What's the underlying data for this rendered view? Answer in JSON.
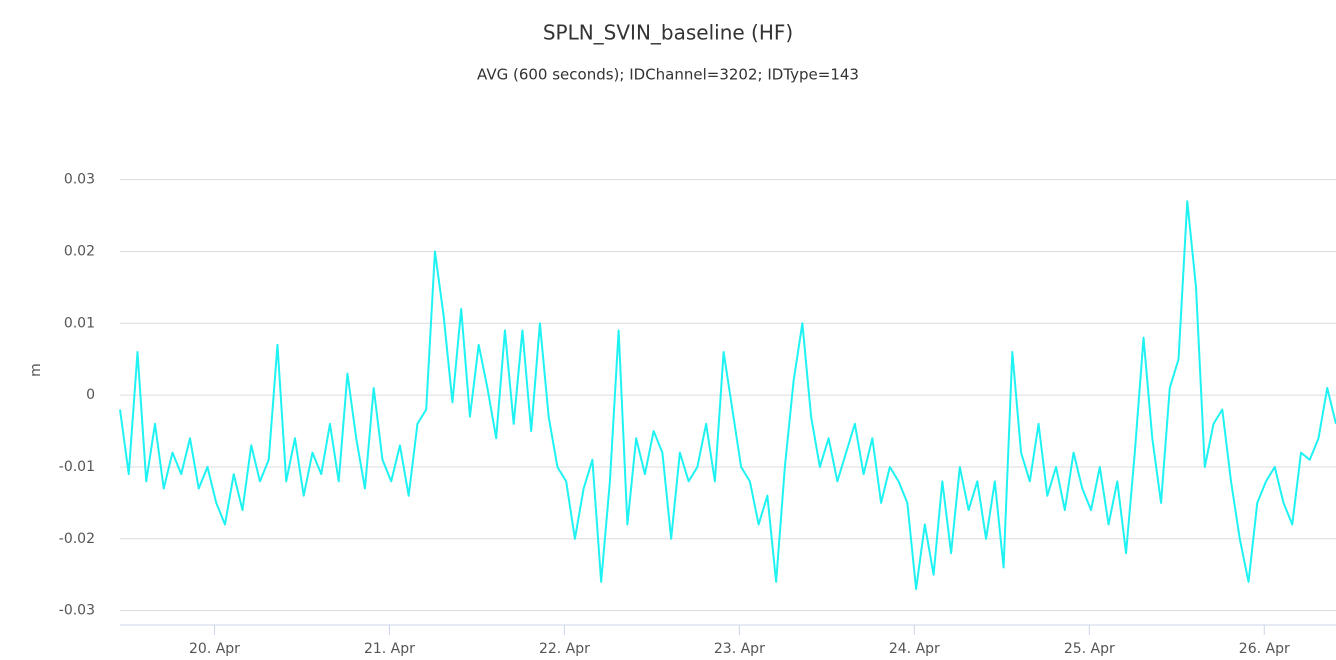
{
  "chart_data": {
    "type": "line",
    "title": "SPLN_SVIN_baseline (HF)",
    "subtitle": "AVG (600 seconds); IDChannel=3202; IDType=143",
    "y_label": "m",
    "color": "#1ff2f2",
    "grid": true,
    "xlim": [
      19.46,
      26.41
    ],
    "xticks": [
      {
        "value": 20,
        "label": "20. Apr"
      },
      {
        "value": 21,
        "label": "21. Apr"
      },
      {
        "value": 22,
        "label": "22. Apr"
      },
      {
        "value": 23,
        "label": "23. Apr"
      },
      {
        "value": 24,
        "label": "24. Apr"
      },
      {
        "value": 25,
        "label": "25. Apr"
      },
      {
        "value": 26,
        "label": "26. Apr"
      }
    ],
    "ylim": [
      -0.032,
      0.039
    ],
    "yticks": [
      -0.03,
      -0.02,
      -0.01,
      0,
      0.01,
      0.02,
      0.03
    ],
    "x": [
      19.46,
      19.51,
      19.56,
      19.61,
      19.66,
      19.71,
      19.76,
      19.81,
      19.86,
      19.91,
      19.96,
      20.01,
      20.06,
      20.11,
      20.16,
      20.21,
      20.26,
      20.31,
      20.36,
      20.41,
      20.46,
      20.51,
      20.56,
      20.61,
      20.66,
      20.71,
      20.76,
      20.81,
      20.86,
      20.91,
      20.96,
      21.01,
      21.06,
      21.11,
      21.16,
      21.21,
      21.26,
      21.31,
      21.36,
      21.41,
      21.46,
      21.51,
      21.56,
      21.61,
      21.66,
      21.71,
      21.76,
      21.81,
      21.86,
      21.91,
      21.96,
      22.01,
      22.06,
      22.11,
      22.16,
      22.21,
      22.26,
      22.31,
      22.36,
      22.41,
      22.46,
      22.51,
      22.56,
      22.61,
      22.66,
      22.71,
      22.76,
      22.81,
      22.86,
      22.91,
      22.96,
      23.01,
      23.06,
      23.11,
      23.16,
      23.21,
      23.26,
      23.31,
      23.36,
      23.41,
      23.46,
      23.51,
      23.56,
      23.61,
      23.66,
      23.71,
      23.76,
      23.81,
      23.86,
      23.91,
      23.96,
      24.01,
      24.06,
      24.11,
      24.16,
      24.21,
      24.26,
      24.31,
      24.36,
      24.41,
      24.46,
      24.51,
      24.56,
      24.61,
      24.66,
      24.71,
      24.76,
      24.81,
      24.86,
      24.91,
      24.96,
      25.01,
      25.06,
      25.11,
      25.16,
      25.21,
      25.26,
      25.31,
      25.36,
      25.41,
      25.46,
      25.51,
      25.56,
      25.61,
      25.66,
      25.71,
      25.76,
      25.81,
      25.86,
      25.91,
      25.96,
      26.01,
      26.06,
      26.11,
      26.16,
      26.21,
      26.26,
      26.31,
      26.36,
      26.41
    ],
    "values": [
      -0.002,
      -0.011,
      0.006,
      -0.012,
      -0.004,
      -0.013,
      -0.008,
      -0.011,
      -0.006,
      -0.013,
      -0.01,
      -0.015,
      -0.018,
      -0.011,
      -0.016,
      -0.007,
      -0.012,
      -0.009,
      0.007,
      -0.012,
      -0.006,
      -0.014,
      -0.008,
      -0.011,
      -0.004,
      -0.012,
      0.003,
      -0.006,
      -0.013,
      0.001,
      -0.009,
      -0.012,
      -0.007,
      -0.014,
      -0.004,
      -0.002,
      0.02,
      0.011,
      -0.001,
      0.012,
      -0.003,
      0.007,
      0.001,
      -0.006,
      0.009,
      -0.004,
      0.009,
      -0.005,
      0.01,
      -0.003,
      -0.01,
      -0.012,
      -0.02,
      -0.013,
      -0.009,
      -0.026,
      -0.012,
      0.009,
      -0.018,
      -0.006,
      -0.011,
      -0.005,
      -0.008,
      -0.02,
      -0.008,
      -0.012,
      -0.01,
      -0.004,
      -0.012,
      0.006,
      -0.002,
      -0.01,
      -0.012,
      -0.018,
      -0.014,
      -0.026,
      -0.01,
      0.002,
      0.01,
      -0.003,
      -0.01,
      -0.006,
      -0.012,
      -0.008,
      -0.004,
      -0.011,
      -0.006,
      -0.015,
      -0.01,
      -0.012,
      -0.015,
      -0.027,
      -0.018,
      -0.025,
      -0.012,
      -0.022,
      -0.01,
      -0.016,
      -0.012,
      -0.02,
      -0.012,
      -0.024,
      0.006,
      -0.008,
      -0.012,
      -0.004,
      -0.014,
      -0.01,
      -0.016,
      -0.008,
      -0.013,
      -0.016,
      -0.01,
      -0.018,
      -0.012,
      -0.022,
      -0.008,
      0.008,
      -0.006,
      -0.015,
      0.001,
      0.005,
      0.027,
      0.015,
      -0.01,
      -0.004,
      -0.002,
      -0.012,
      -0.02,
      -0.026,
      -0.015,
      -0.012,
      -0.01,
      -0.015,
      -0.018,
      -0.008,
      -0.009,
      -0.006,
      0.001,
      -0.004
    ]
  }
}
